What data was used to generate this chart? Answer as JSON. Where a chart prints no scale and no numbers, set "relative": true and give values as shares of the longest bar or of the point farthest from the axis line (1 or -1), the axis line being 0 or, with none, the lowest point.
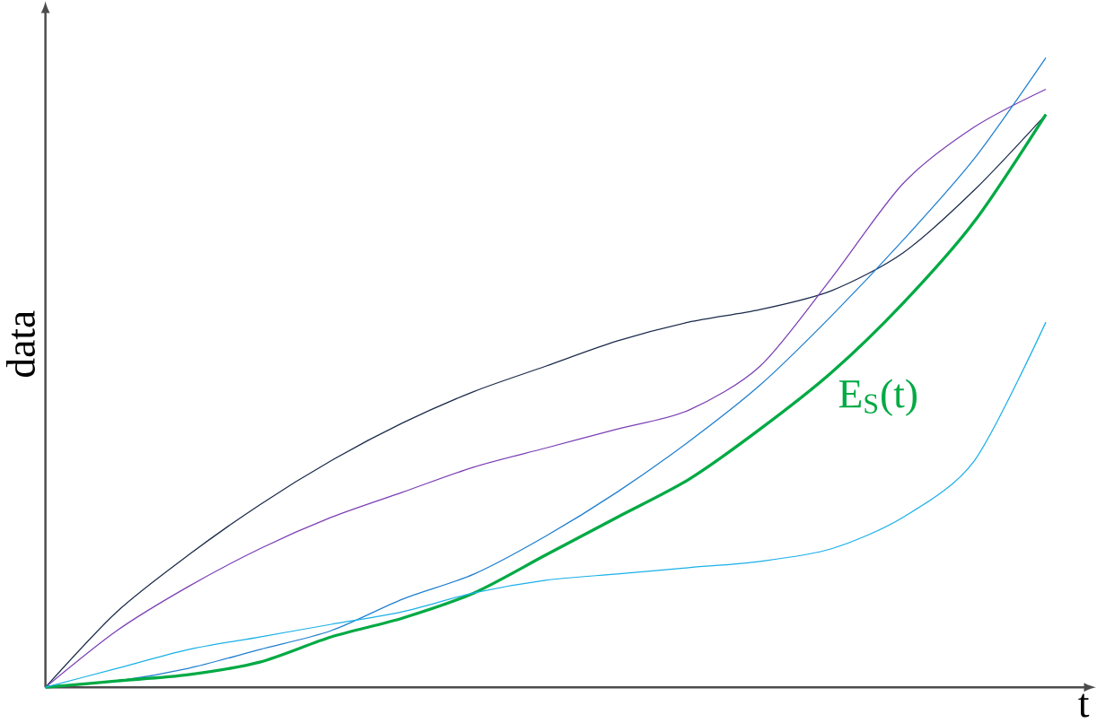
{
  "chart_data": {
    "type": "line",
    "relative": true,
    "xlabel": "t",
    "ylabel": "data",
    "categories": [
      null,
      null,
      null,
      null,
      null,
      null,
      null,
      null,
      null,
      null,
      null,
      null,
      null,
      null,
      null
    ],
    "series": [
      {
        "color": "#1a2a4a",
        "values": [
          0,
          0.12,
          0.21,
          0.29,
          0.36,
          0.42,
          0.47,
          0.51,
          0.55,
          0.58,
          0.6,
          0.63,
          0.69,
          0.79,
          0.91
        ]
      },
      {
        "color": "#7b3fb5",
        "values": [
          0,
          0.09,
          0.16,
          0.22,
          0.27,
          0.31,
          0.35,
          0.38,
          0.41,
          0.44,
          0.51,
          0.65,
          0.8,
          0.89,
          0.95
        ]
      },
      {
        "color": "#1f7fd0",
        "values": [
          0,
          0.01,
          0.03,
          0.06,
          0.09,
          0.14,
          0.18,
          0.24,
          0.31,
          0.39,
          0.48,
          0.59,
          0.71,
          0.84,
          1
        ]
      },
      {
        "name": "E$_{S}$(t)",
        "color": "#00aa44",
        "values": [
          0,
          0.01,
          0.02,
          0.04,
          0.08,
          0.11,
          0.15,
          0.21,
          0.27,
          0.33,
          0.41,
          0.5,
          0.61,
          0.74,
          0.91
        ]
      },
      {
        "color": "#1ab0e8",
        "values": [
          0,
          0.03,
          0.06,
          0.08,
          0.1,
          0.12,
          0.15,
          0.17,
          0.18,
          0.19,
          0.2,
          0.22,
          0.27,
          0.36,
          0.58
        ]
      }
    ]
  }
}
